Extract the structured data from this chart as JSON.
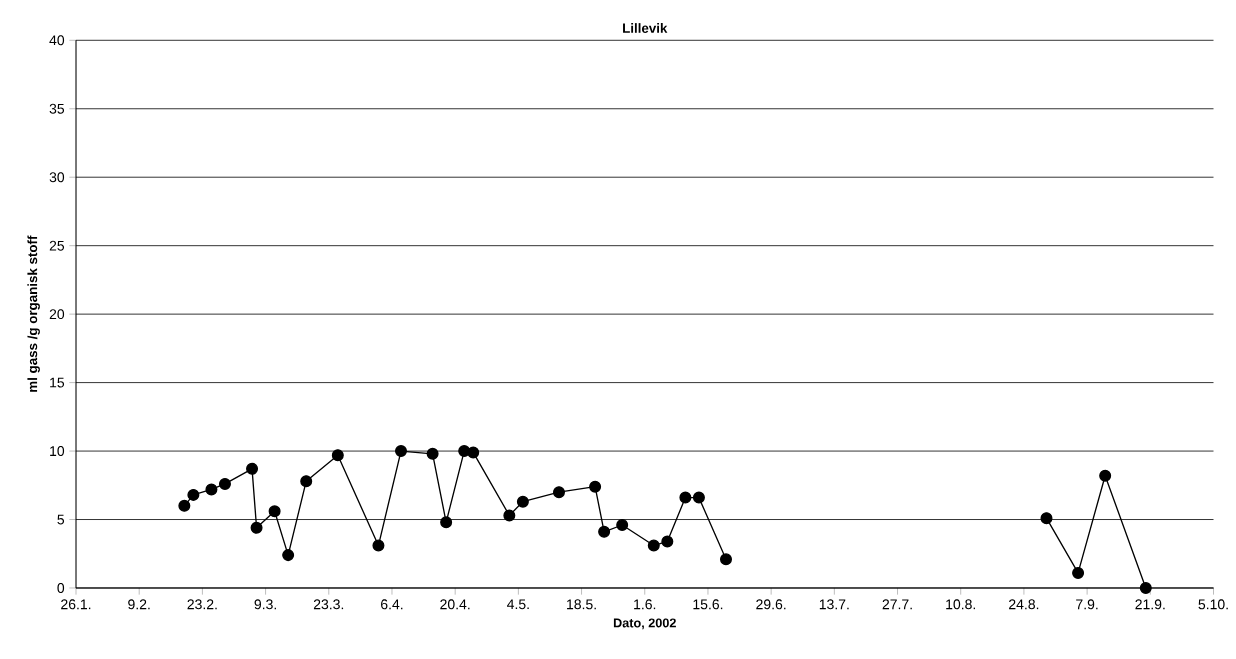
{
  "chart_data": {
    "type": "line",
    "title": "Lillevik",
    "xlabel": "Dato, 2002",
    "ylabel": "ml gass /g organisk stoff",
    "x": [
      "2002-02-19",
      "2002-02-21",
      "2002-02-25",
      "2002-02-28",
      "2002-03-06",
      "2002-03-07",
      "2002-03-11",
      "2002-03-14",
      "2002-03-18",
      "2002-03-25",
      "2002-04-03",
      "2002-04-08",
      "2002-04-15",
      "2002-04-18",
      "2002-04-22",
      "2002-04-24",
      "2002-05-02",
      "2002-05-05",
      "2002-05-13",
      "2002-05-21",
      "2002-05-23",
      "2002-05-27",
      "2002-06-03",
      "2002-06-06",
      "2002-06-10",
      "2002-06-13",
      "2002-06-19",
      "2002-07-24",
      "2002-08-29",
      "2002-09-05",
      "2002-09-11",
      "2002-09-20"
    ],
    "series": [
      {
        "color": "#000000",
        "values": [
          6.0,
          6.8,
          7.2,
          7.6,
          8.7,
          4.4,
          5.6,
          2.4,
          7.8,
          9.7,
          3.1,
          10.0,
          9.8,
          4.8,
          10.0,
          9.9,
          5.3,
          6.3,
          7.0,
          7.4,
          4.1,
          4.6,
          3.1,
          3.4,
          6.6,
          6.6,
          2.1,
          null,
          5.1,
          1.1,
          8.2,
          0.0
        ]
      }
    ],
    "xlim": [
      "2002-01-26",
      "2002-10-05"
    ],
    "xticks": [
      {
        "value": "2002-01-26",
        "label": "26.1."
      },
      {
        "value": "2002-02-09",
        "label": "9.2."
      },
      {
        "value": "2002-02-23",
        "label": "23.2."
      },
      {
        "value": "2002-03-09",
        "label": "9.3."
      },
      {
        "value": "2002-03-23",
        "label": "23.3."
      },
      {
        "value": "2002-04-06",
        "label": "6.4."
      },
      {
        "value": "2002-04-20",
        "label": "20.4."
      },
      {
        "value": "2002-05-04",
        "label": "4.5."
      },
      {
        "value": "2002-05-18",
        "label": "18.5."
      },
      {
        "value": "2002-06-01",
        "label": "1.6."
      },
      {
        "value": "2002-06-15",
        "label": "15.6."
      },
      {
        "value": "2002-06-29",
        "label": "29.6."
      },
      {
        "value": "2002-07-13",
        "label": "13.7."
      },
      {
        "value": "2002-07-27",
        "label": "27.7."
      },
      {
        "value": "2002-08-10",
        "label": "10.8."
      },
      {
        "value": "2002-08-24",
        "label": "24.8."
      },
      {
        "value": "2002-09-07",
        "label": "7.9."
      },
      {
        "value": "2002-09-21",
        "label": "21.9."
      },
      {
        "value": "2002-10-05",
        "label": "5.10."
      }
    ],
    "ylim": [
      0,
      40
    ],
    "yticks": [
      0,
      5,
      10,
      15,
      20,
      25,
      30,
      35,
      40
    ],
    "grid": "y",
    "legend": false,
    "marker": "circle",
    "line_style": "solid"
  }
}
